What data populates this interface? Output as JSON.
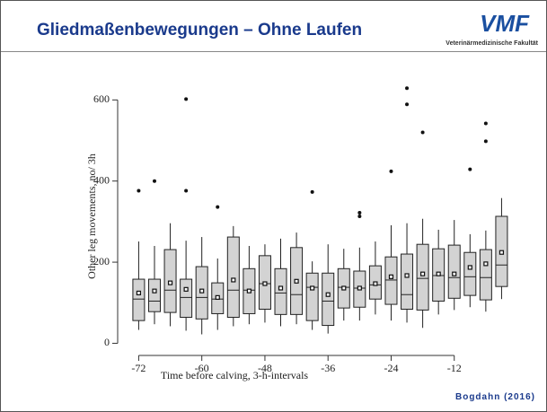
{
  "header": {
    "title": "Gliedmaßenbewegungen – Ohne Laufen",
    "logo": "VMF",
    "logo_subtitle": "Veterinärmedizinische Fakultät"
  },
  "chart_data": {
    "type": "box",
    "x": [
      -72,
      -69,
      -66,
      -63,
      -60,
      -57,
      -54,
      -51,
      -48,
      -45,
      -42,
      -39,
      -36,
      -33,
      -30,
      -27,
      -24,
      -21,
      -18,
      -15,
      -12,
      -9,
      -6,
      -3
    ],
    "whislo": [
      33,
      47,
      42,
      31,
      22,
      33,
      42,
      47,
      51,
      42,
      47,
      33,
      24,
      56,
      56,
      71,
      56,
      51,
      38,
      71,
      82,
      89,
      78,
      109
    ],
    "q1": [
      56,
      78,
      76,
      64,
      60,
      73,
      64,
      73,
      84,
      71,
      71,
      56,
      44,
      87,
      89,
      109,
      96,
      84,
      82,
      104,
      111,
      118,
      107,
      140
    ],
    "median": [
      109,
      104,
      131,
      113,
      113,
      109,
      131,
      131,
      147,
      124,
      120,
      138,
      104,
      138,
      136,
      144,
      156,
      120,
      160,
      167,
      162,
      164,
      162,
      193
    ],
    "q3": [
      158,
      158,
      231,
      158,
      189,
      149,
      262,
      184,
      216,
      184,
      236,
      173,
      173,
      184,
      178,
      191,
      213,
      220,
      244,
      233,
      242,
      224,
      231,
      313
    ],
    "whishi": [
      251,
      240,
      296,
      253,
      262,
      209,
      289,
      240,
      244,
      258,
      273,
      202,
      244,
      233,
      236,
      251,
      291,
      296,
      307,
      280,
      304,
      269,
      278,
      358
    ],
    "mean": [
      124,
      129,
      149,
      133,
      129,
      113,
      156,
      129,
      147,
      136,
      153,
      136,
      120,
      136,
      136,
      147,
      164,
      167,
      171,
      171,
      171,
      187,
      196,
      224
    ],
    "fliers": [
      [
        376
      ],
      [
        400
      ],
      [],
      [
        602,
        376
      ],
      [],
      [
        336
      ],
      [],
      [],
      [],
      [],
      [],
      [
        373
      ],
      [],
      [],
      [
        322,
        313
      ],
      [],
      [
        424
      ],
      [
        629,
        589
      ],
      [
        520
      ],
      [],
      [],
      [
        429
      ],
      [
        542,
        498
      ],
      []
    ],
    "color": "#d3d3d3",
    "xlim": [
      -76,
      0
    ],
    "ylim": [
      -30,
      645
    ],
    "xticks": [
      -72,
      -60,
      -48,
      -36,
      -24,
      -12
    ],
    "yticks": [
      0,
      200,
      400,
      600
    ],
    "xlabel": "Time before calving, 3-h-intervals",
    "ylabel": "Other leg movements, no/ 3h"
  },
  "footer": {
    "citation": "Bogdahn (2016)"
  }
}
